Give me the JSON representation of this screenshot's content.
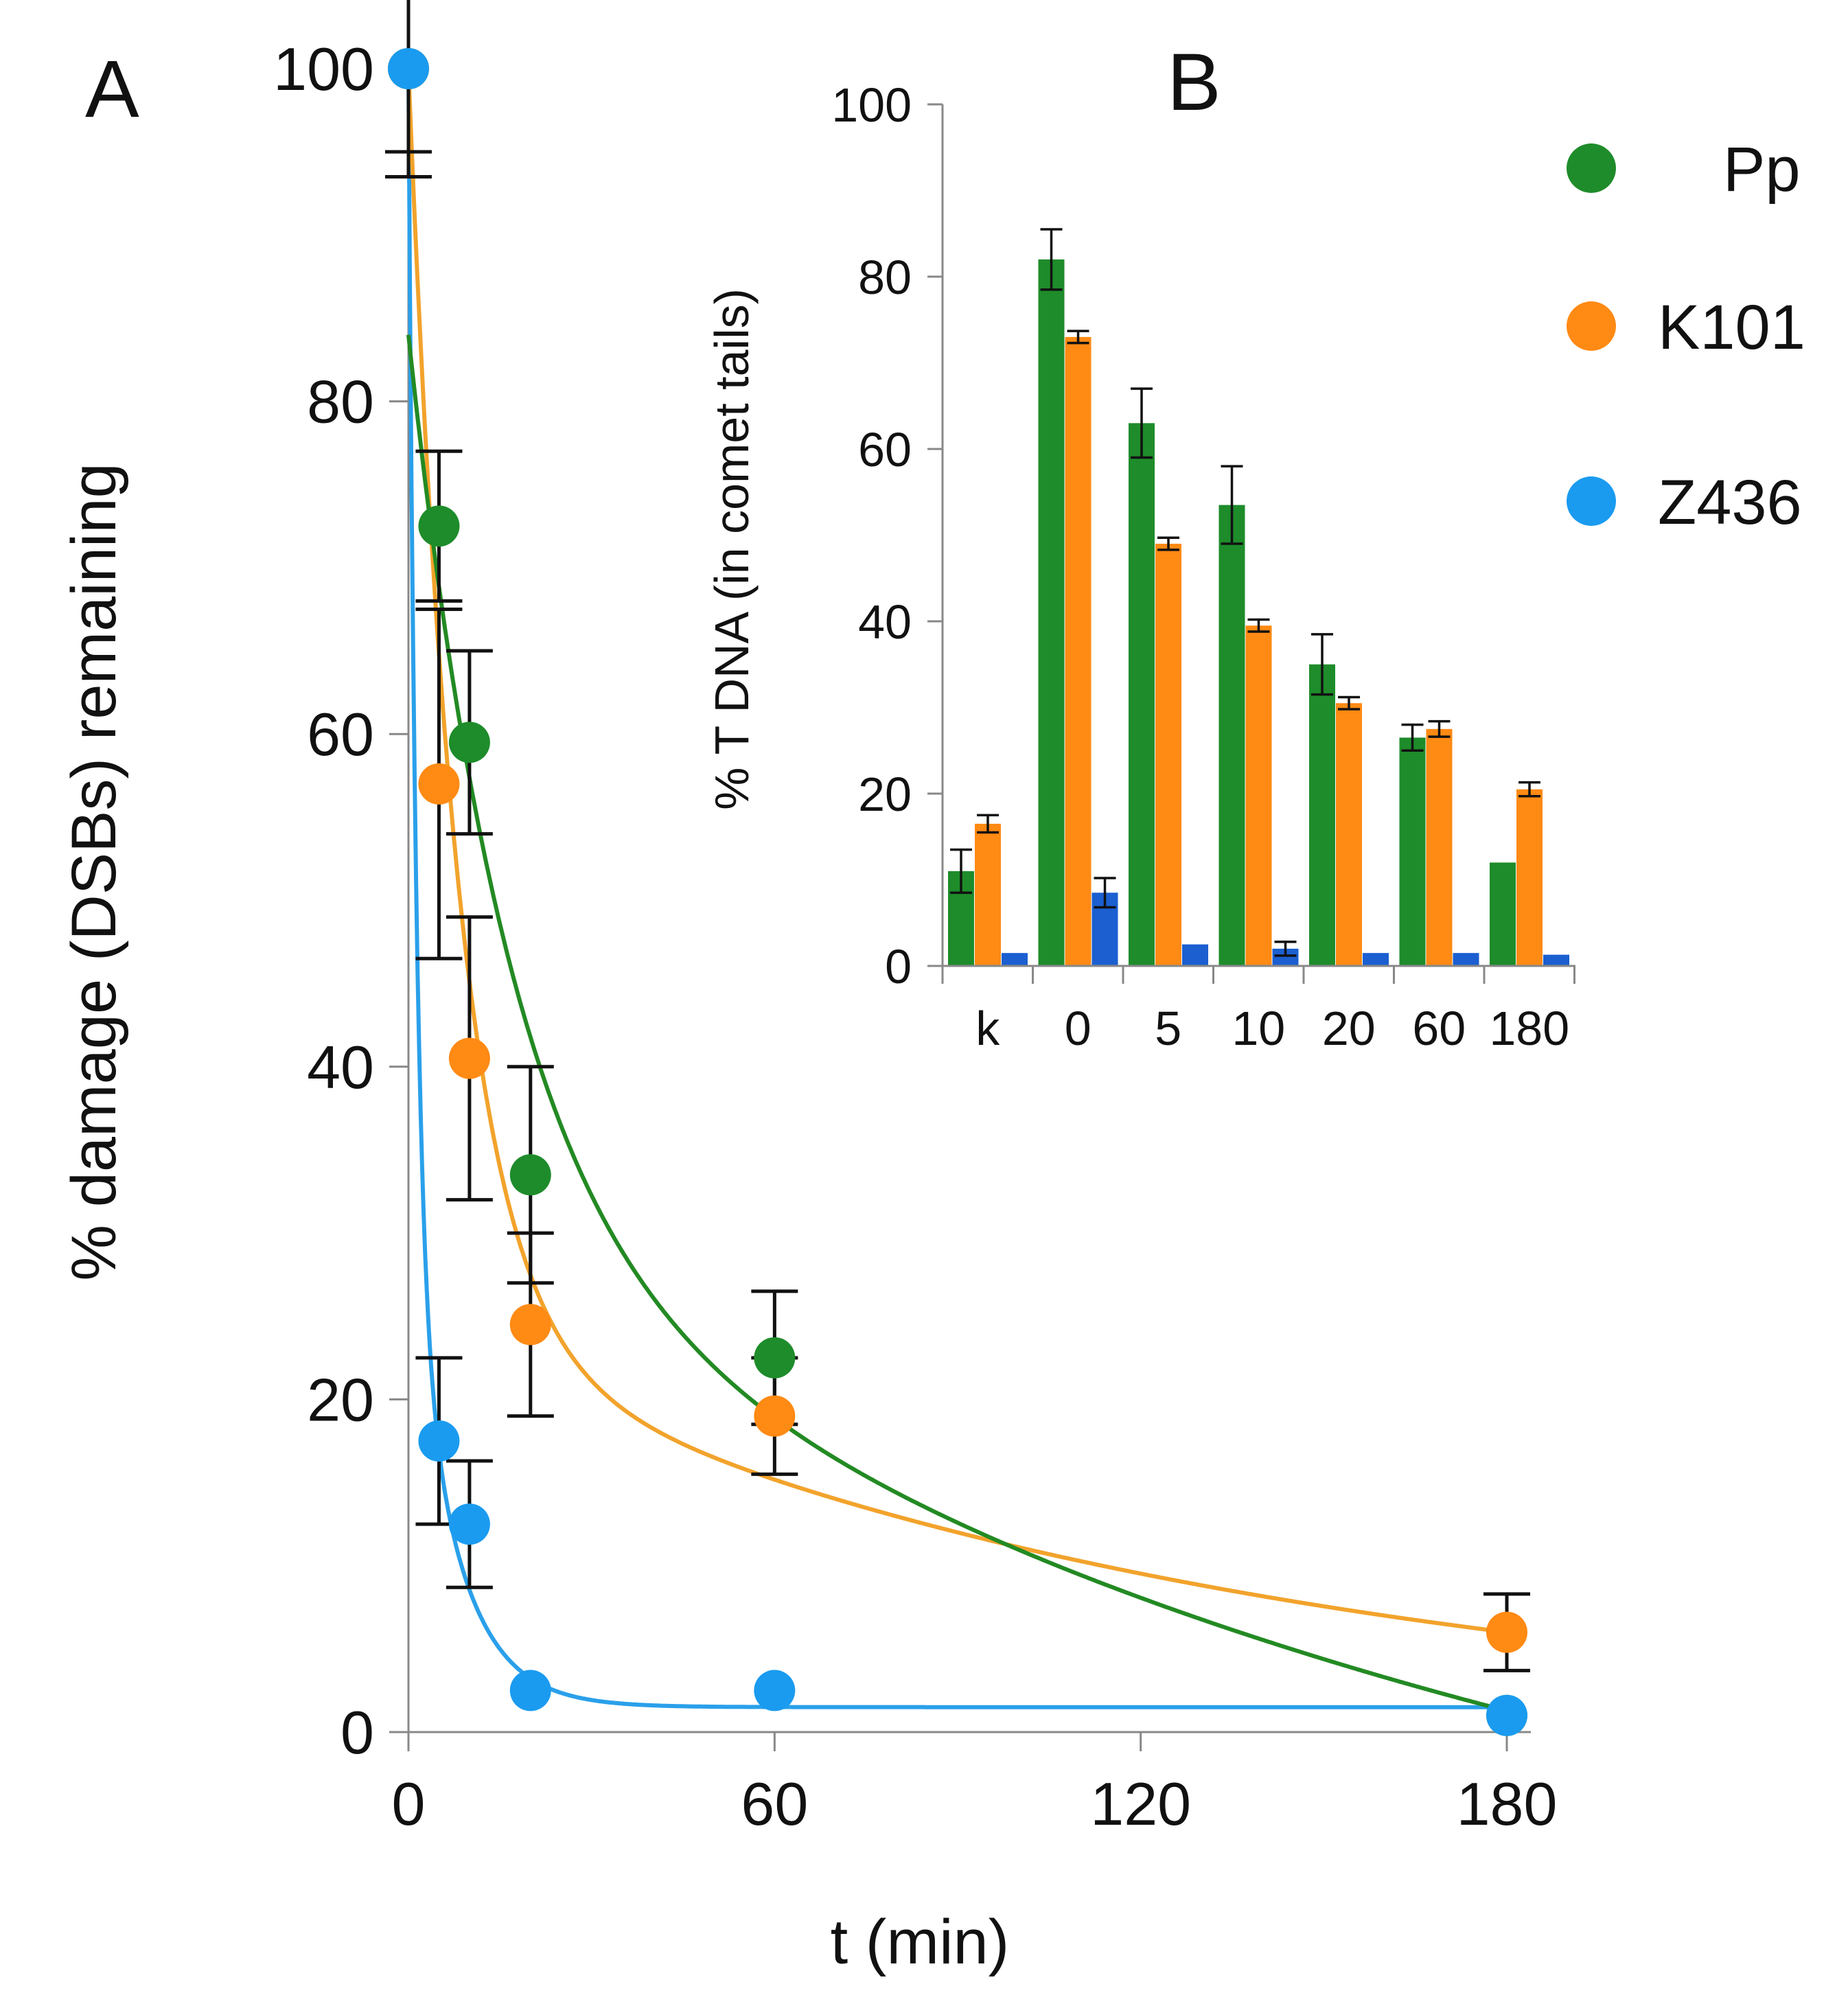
{
  "colors": {
    "Pp": "#1e8c2a",
    "K101": "#ff8a14",
    "Z436": "#1a9bf0",
    "Z436_bar": "#1b5fd0",
    "fit_K101": "#f2a32c",
    "fit_Pp": "#238a23",
    "fit_Z436": "#2aa0ea",
    "axis": "#888888",
    "error_bar": "#111111"
  },
  "legend": {
    "entries": [
      {
        "name": "Pp",
        "label": "Pp"
      },
      {
        "name": "K101",
        "label": "K101"
      },
      {
        "name": "Z436",
        "label": "Z436"
      }
    ]
  },
  "chart_data": [
    {
      "panel": "A",
      "type": "scatter",
      "xlabel": "t (min)",
      "ylabel": "% damage (DSBs) remaining",
      "xlim": [
        0,
        180
      ],
      "ylim": [
        0,
        100
      ],
      "x_ticks": [
        0,
        60,
        120,
        180
      ],
      "y_ticks": [
        0,
        20,
        40,
        60,
        80,
        100
      ],
      "grid": false,
      "legend_position": "top-right",
      "series": [
        {
          "name": "Pp",
          "x": [
            0,
            5,
            10,
            20,
            60,
            180
          ],
          "y": [
            100,
            72.5,
            59.5,
            33.5,
            22.5,
            1
          ],
          "err": [
            5,
            4.5,
            5.5,
            6.5,
            4,
            0
          ],
          "fit": {
            "type": "biexponential",
            "A1": 53.5,
            "k1": 0.06,
            "A2": 46.5,
            "k2": 0.0055,
            "c": -16
          }
        },
        {
          "name": "K101",
          "x": [
            0,
            5,
            10,
            20,
            60,
            180
          ],
          "y": [
            100,
            57,
            40.5,
            24.5,
            19,
            6
          ],
          "err": [
            6.5,
            10.5,
            8.5,
            5.5,
            3.5,
            2.3
          ],
          "fit": {
            "type": "biexponential",
            "A1": 76,
            "k1": 0.12,
            "A2": 24,
            "k2": 0.0077,
            "c": 0
          }
        },
        {
          "name": "Z436",
          "x": [
            0,
            5,
            10,
            20,
            60,
            180
          ],
          "y": [
            100,
            17.5,
            12.5,
            2.5,
            2.5,
            1
          ],
          "err": [
            0,
            5,
            3.8,
            0,
            0,
            0
          ],
          "fit": {
            "type": "biexponential",
            "A1": 70,
            "k1": 0.8,
            "A2": 28.5,
            "k2": 0.14,
            "c": 1.5
          }
        }
      ]
    },
    {
      "panel": "B",
      "type": "bar",
      "ylabel": "% T DNA (in comet tails)",
      "ylim": [
        0,
        100
      ],
      "y_ticks": [
        0,
        20,
        40,
        60,
        80,
        100
      ],
      "categories": [
        "k",
        "0",
        "5",
        "10",
        "20",
        "60",
        "180"
      ],
      "grid": false,
      "series": [
        {
          "name": "Pp",
          "values": [
            11,
            82,
            63,
            53.5,
            35,
            26.5,
            12
          ],
          "err": [
            2.5,
            3.5,
            4,
            4.5,
            3.5,
            1.5,
            0
          ]
        },
        {
          "name": "K101",
          "values": [
            16.5,
            73,
            49,
            39.5,
            30.5,
            27.5,
            20.5
          ],
          "err": [
            1,
            0.7,
            0.7,
            0.7,
            0.7,
            0.9,
            0.8
          ]
        },
        {
          "name": "Z436",
          "values": [
            1.5,
            8.5,
            2.5,
            2,
            1.5,
            1.5,
            1.3
          ],
          "err": [
            0,
            1.7,
            0,
            0.8,
            0,
            0,
            0
          ]
        }
      ]
    }
  ],
  "labels": {
    "panel_a": "A",
    "panel_b": "B"
  }
}
